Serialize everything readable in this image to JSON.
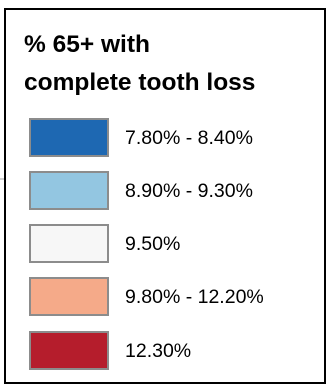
{
  "legend": {
    "title_line1": "% 65+ with",
    "title_line2": "complete tooth loss",
    "items": [
      {
        "label": "7.80% - 8.40%",
        "color": "#1e68b2"
      },
      {
        "label": "8.90% - 9.30%",
        "color": "#93c6e1"
      },
      {
        "label": "9.50%",
        "color": "#f7f7f7"
      },
      {
        "label": "9.80% - 12.20%",
        "color": "#f5aa89"
      },
      {
        "label": "12.30%",
        "color": "#b51d2c"
      }
    ]
  }
}
